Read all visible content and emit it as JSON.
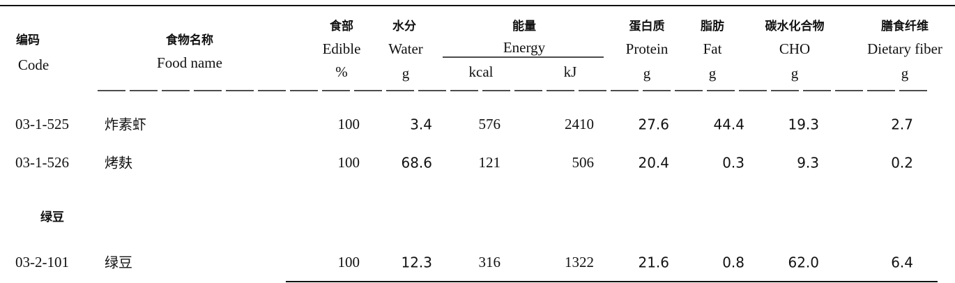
{
  "header": {
    "code": {
      "zh": "编码",
      "en": "Code"
    },
    "food_name": {
      "zh": "食物名称",
      "en": "Food name"
    },
    "edible": {
      "zh": "食部",
      "en": "Edible",
      "unit": "%"
    },
    "water": {
      "zh": "水分",
      "en": "Water",
      "unit": "g"
    },
    "energy": {
      "zh": "能量",
      "en": "Energy",
      "units": [
        "kcal",
        "kJ"
      ]
    },
    "protein": {
      "zh": "蛋白质",
      "en": "Protein",
      "unit": "g"
    },
    "fat": {
      "zh": "脂肪",
      "en": "Fat",
      "unit": "g"
    },
    "cho": {
      "zh": "碳水化合物",
      "en": "CHO",
      "unit": "g"
    },
    "fiber": {
      "zh": "膳食纤维",
      "en": "Dietary fiber",
      "unit": "g"
    }
  },
  "table": {
    "rows": [
      [
        "03-1-525",
        "炸素虾",
        "100",
        "3.4",
        "576",
        "2410",
        "27.6",
        "44.4",
        "19.3",
        "2.7"
      ],
      [
        "03-1-526",
        "烤麸",
        "100",
        "68.6",
        "121",
        "506",
        "20.4",
        "0.3",
        "9.3",
        "0.2"
      ]
    ],
    "group": {
      "title": "绿豆",
      "rows": [
        [
          "03-2-101",
          "绿豆",
          "100",
          "12.3",
          "316",
          "1322",
          "21.6",
          "0.8",
          "62.0",
          "6.4"
        ]
      ]
    }
  }
}
